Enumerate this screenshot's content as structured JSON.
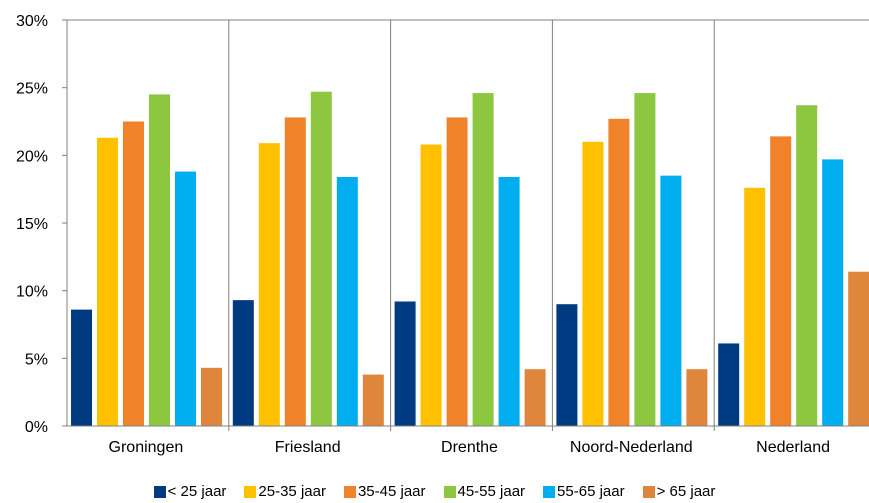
{
  "chart_data": {
    "type": "bar",
    "title": "",
    "xlabel": "",
    "ylabel": "",
    "ylim": [
      0,
      30
    ],
    "yticks": [
      "0%",
      "5%",
      "10%",
      "15%",
      "20%",
      "25%",
      "30%"
    ],
    "y_tick_values": [
      0,
      5,
      10,
      15,
      20,
      25,
      30
    ],
    "grid": "vertical-category-separators",
    "legend_position": "bottom",
    "categories": [
      "Groningen",
      "Friesland",
      "Drenthe",
      "Noord-Nederland",
      "Nederland"
    ],
    "series": [
      {
        "name": "< 25 jaar",
        "color": "#003a80",
        "values": [
          8.6,
          9.3,
          9.2,
          9.0,
          6.1
        ]
      },
      {
        "name": "25-35 jaar",
        "color": "#ffc000",
        "values": [
          21.3,
          20.9,
          20.8,
          21.0,
          17.6
        ]
      },
      {
        "name": "35-45 jaar",
        "color": "#f0822a",
        "values": [
          22.5,
          22.8,
          22.8,
          22.7,
          21.4
        ]
      },
      {
        "name": "45-55 jaar",
        "color": "#8dc63f",
        "values": [
          24.5,
          24.7,
          24.6,
          24.6,
          23.7
        ]
      },
      {
        "name": "55-65 jaar",
        "color": "#00adef",
        "values": [
          18.8,
          18.4,
          18.4,
          18.5,
          19.7
        ]
      },
      {
        "name": "> 65 jaar",
        "color": "#e0853c",
        "values": [
          4.3,
          3.8,
          4.2,
          4.2,
          11.4
        ]
      }
    ]
  }
}
